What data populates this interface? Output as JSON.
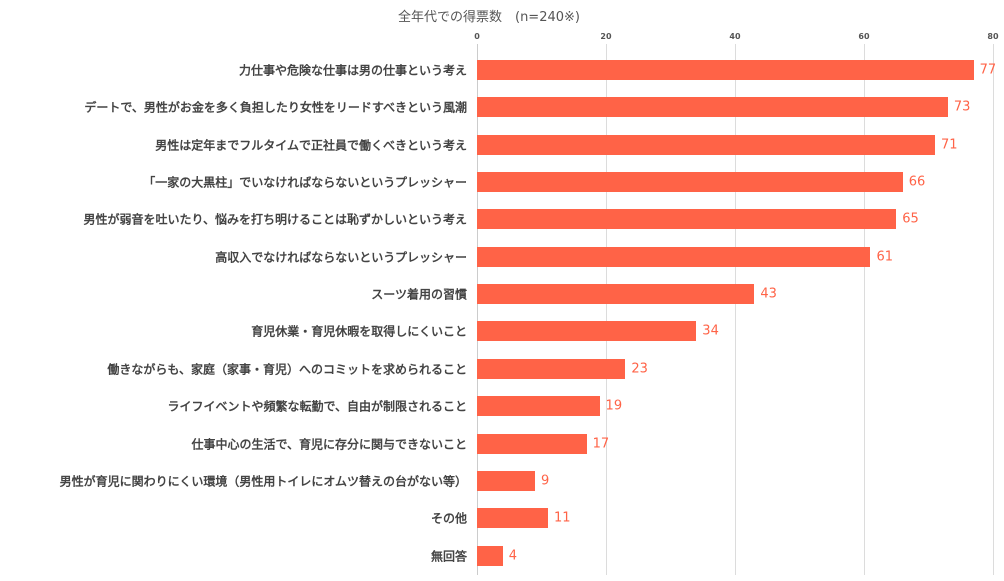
{
  "chart_data": {
    "type": "bar",
    "orientation": "horizontal",
    "title": "全年代での得票数　(n=240※)",
    "xlabel": "",
    "ylabel": "",
    "xlim": [
      0,
      80
    ],
    "x_ticks": [
      "0",
      "20",
      "40",
      "60",
      "80"
    ],
    "grid": true,
    "legend": null,
    "bar_color": "#ff6347",
    "value_label_color": "#ff6347",
    "categories": [
      "力仕事や危険な仕事は男の仕事という考え",
      "デートで、男性がお金を多く負担したり女性をリードすべきという風潮",
      "男性は定年までフルタイムで正社員で働くべきという考え",
      "「一家の大黒柱」でいなければならないというプレッシャー",
      "男性が弱音を吐いたり、悩みを打ち明けることは恥ずかしいという考え",
      "高収入でなければならないというプレッシャー",
      "スーツ着用の習慣",
      "育児休業・育児休暇を取得しにくいこと",
      "働きながらも、家庭（家事・育児）へのコミットを求められること",
      "ライフイベントや頻繁な転勤で、自由が制限されること",
      "仕事中心の生活で、育児に存分に関与できないこと",
      "男性が育児に関わりにくい環境（男性用トイレにオムツ替えの台がない等）",
      "その他",
      "無回答"
    ],
    "values": [
      77,
      73,
      71,
      66,
      65,
      61,
      43,
      34,
      23,
      19,
      17,
      9,
      11,
      4
    ]
  }
}
